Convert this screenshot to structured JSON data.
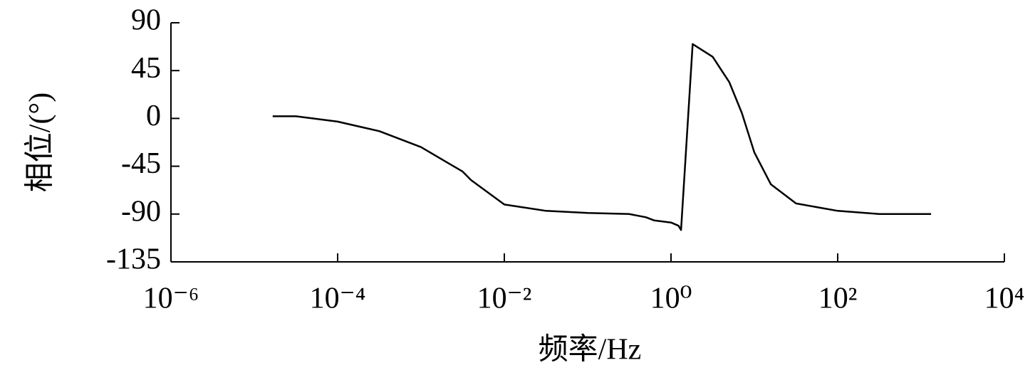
{
  "chart_data": {
    "type": "line",
    "x_label": "频率/Hz",
    "y_label": "相位/(°)",
    "log_x": true,
    "xlim": [
      1e-06,
      10000
    ],
    "xticks": [
      {
        "value": 1e-06,
        "label": "10⁻⁶"
      },
      {
        "value": 0.0001,
        "label": "10⁻⁴"
      },
      {
        "value": 0.01,
        "label": "10⁻²"
      },
      {
        "value": 1,
        "label": "10⁰"
      },
      {
        "value": 100,
        "label": "10²"
      },
      {
        "value": 10000,
        "label": "10⁴"
      }
    ],
    "ylim": [
      -135,
      90
    ],
    "yticks": [
      90,
      45,
      0,
      -45,
      -90,
      -135
    ],
    "color": "#000000",
    "x": [
      1.66e-05,
      3.16e-05,
      0.0001,
      0.000316,
      0.001,
      0.00316,
      0.00398,
      0.01,
      0.0316,
      0.1,
      0.316,
      0.5,
      0.63,
      1,
      1.23,
      1.32,
      1.82,
      3.16,
      5.01,
      7.08,
      10,
      15.8,
      31.6,
      100,
      316,
      1000,
      1320
    ],
    "values": [
      2,
      2,
      -3,
      -12,
      -27,
      -50,
      -58,
      -81,
      -87,
      -89,
      -90,
      -93,
      -96,
      -98,
      -101,
      -105,
      70,
      58,
      34,
      5,
      -32,
      -62,
      -80,
      -87,
      -90,
      -90,
      -90
    ]
  }
}
